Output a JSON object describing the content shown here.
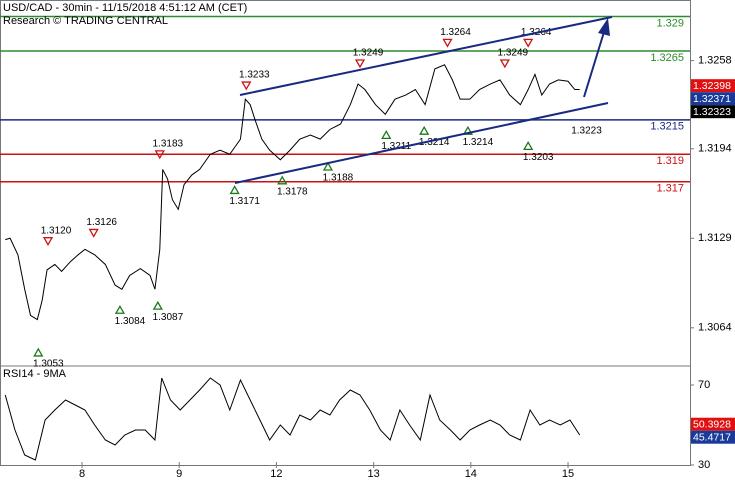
{
  "chart_data": [
    {
      "type": "line",
      "title": "USD/CAD - 30min - 11/15/2018 4:51:12 AM (CET)",
      "subtitle": "Research © TRADING CENTRAL",
      "color": "#000000",
      "xlim": [
        -0.844,
        6.255
      ],
      "xticks": [
        {
          "value": 0,
          "label": "8"
        },
        {
          "value": 1,
          "label": "9"
        },
        {
          "value": 2,
          "label": "12"
        },
        {
          "value": 3,
          "label": "13"
        },
        {
          "value": 4,
          "label": "14"
        },
        {
          "value": 5,
          "label": "15"
        }
      ],
      "ylim": [
        1.3037,
        1.3302
      ],
      "yticks": [
        1.3258,
        1.3194,
        1.3129,
        1.3064
      ],
      "x": [
        -0.79,
        -0.74,
        -0.66,
        -0.59,
        -0.53,
        -0.46,
        -0.41,
        -0.36,
        -0.28,
        -0.21,
        -0.12,
        -0.04,
        0.03,
        0.13,
        0.24,
        0.34,
        0.41,
        0.49,
        0.6,
        0.7,
        0.75,
        0.8,
        0.83,
        0.88,
        0.93,
        0.99,
        1.05,
        1.13,
        1.21,
        1.32,
        1.42,
        1.52,
        1.63,
        1.68,
        1.73,
        1.78,
        1.85,
        1.93,
        2.04,
        2.14,
        2.24,
        2.35,
        2.45,
        2.55,
        2.66,
        2.76,
        2.84,
        2.91,
        3.02,
        3.12,
        3.22,
        3.33,
        3.43,
        3.53,
        3.63,
        3.73,
        3.81,
        3.89,
        3.99,
        4.09,
        4.2,
        4.3,
        4.4,
        4.51,
        4.59,
        4.66,
        4.73,
        4.81,
        4.9,
        5.0,
        5.07,
        5.12
      ],
      "values": [
        1.3128,
        1.3129,
        1.3117,
        1.3092,
        1.3073,
        1.307,
        1.3084,
        1.3106,
        1.311,
        1.3105,
        1.3112,
        1.3117,
        1.3121,
        1.3117,
        1.311,
        1.3095,
        1.3092,
        1.3102,
        1.3107,
        1.3102,
        1.3092,
        1.3121,
        1.3179,
        1.3172,
        1.3157,
        1.315,
        1.3168,
        1.3175,
        1.3179,
        1.319,
        1.3193,
        1.319,
        1.3201,
        1.323,
        1.3226,
        1.3215,
        1.3201,
        1.3193,
        1.3186,
        1.3193,
        1.3201,
        1.3204,
        1.3201,
        1.3208,
        1.3212,
        1.3226,
        1.3241,
        1.3237,
        1.3226,
        1.3219,
        1.323,
        1.3233,
        1.3237,
        1.3226,
        1.3252,
        1.3255,
        1.3244,
        1.323,
        1.323,
        1.3237,
        1.3241,
        1.3244,
        1.3233,
        1.3226,
        1.3237,
        1.3248,
        1.3233,
        1.3241,
        1.3244,
        1.3243,
        1.3237,
        1.3237
      ],
      "levels": [
        {
          "value": 1.329,
          "color": "#2e8b2e"
        },
        {
          "value": 1.3265,
          "color": "#2e8b2e"
        },
        {
          "value": 1.3215,
          "color": "#1a2a80"
        },
        {
          "value": 1.319,
          "color": "#cc1111"
        },
        {
          "value": 1.317,
          "color": "#cc1111"
        }
      ],
      "price_tags": [
        {
          "value": 1.32398,
          "color": "#e01010"
        },
        {
          "value": 1.32371,
          "color": "#1a3a9a"
        },
        {
          "value": 1.32323,
          "color": "#000000"
        }
      ],
      "annotations": [
        {
          "x": -0.35,
          "value": 1.312,
          "label": "1.3120",
          "kind": "high"
        },
        {
          "x": 0.12,
          "value": 1.3126,
          "label": "1.3126",
          "kind": "high"
        },
        {
          "x": 0.8,
          "value": 1.3183,
          "label": "1.3183",
          "kind": "high"
        },
        {
          "x": 1.69,
          "value": 1.3233,
          "label": "1.3233",
          "kind": "high"
        },
        {
          "x": 2.86,
          "value": 1.3249,
          "label": "1.3249",
          "kind": "high"
        },
        {
          "x": 3.76,
          "value": 1.3264,
          "label": "1.3264",
          "kind": "high"
        },
        {
          "x": 4.35,
          "value": 1.3249,
          "label": "1.3249",
          "kind": "high"
        },
        {
          "x": 4.59,
          "value": 1.3264,
          "label": "1.3264",
          "kind": "high"
        },
        {
          "x": -0.45,
          "value": 1.3053,
          "label": "1.3053",
          "kind": "low"
        },
        {
          "x": 0.39,
          "value": 1.3084,
          "label": "1.3084",
          "kind": "low"
        },
        {
          "x": 0.78,
          "value": 1.3087,
          "label": "1.3087",
          "kind": "low"
        },
        {
          "x": 1.57,
          "value": 1.3171,
          "label": "1.3171",
          "kind": "low"
        },
        {
          "x": 2.06,
          "value": 1.3178,
          "label": "1.3178",
          "kind": "low"
        },
        {
          "x": 2.53,
          "value": 1.3188,
          "label": "1.3188",
          "kind": "low"
        },
        {
          "x": 3.13,
          "value": 1.3211,
          "label": "1.3211",
          "kind": "low"
        },
        {
          "x": 3.52,
          "value": 1.3214,
          "label": "1.3214",
          "kind": "low"
        },
        {
          "x": 3.97,
          "value": 1.3214,
          "label": "1.3214",
          "kind": "low"
        },
        {
          "x": 4.59,
          "value": 1.3203,
          "label": "1.3203",
          "kind": "low"
        },
        {
          "x": 5.19,
          "value": 1.3223,
          "label": "1.3223",
          "kind": "level"
        }
      ]
    },
    {
      "type": "line",
      "title": "RSI14 - 9MA",
      "color": "#000000",
      "ylim": [
        30,
        79
      ],
      "yticks": [
        70,
        30
      ],
      "x": [
        -0.79,
        -0.69,
        -0.59,
        -0.48,
        -0.38,
        -0.28,
        -0.17,
        -0.07,
        0.03,
        0.13,
        0.24,
        0.34,
        0.44,
        0.55,
        0.65,
        0.75,
        0.82,
        0.91,
        1.01,
        1.11,
        1.21,
        1.32,
        1.42,
        1.52,
        1.63,
        1.73,
        1.83,
        1.93,
        2.04,
        2.14,
        2.24,
        2.35,
        2.45,
        2.55,
        2.65,
        2.76,
        2.86,
        2.96,
        3.07,
        3.17,
        3.27,
        3.37,
        3.48,
        3.58,
        3.68,
        3.79,
        3.89,
        3.99,
        4.09,
        4.2,
        4.3,
        4.4,
        4.51,
        4.61,
        4.71,
        4.81,
        4.92,
        5.02,
        5.12
      ],
      "values": [
        65,
        47.5,
        35,
        32.5,
        52.5,
        57.5,
        62.5,
        60,
        57.5,
        50,
        42.5,
        40,
        45,
        47.5,
        47.5,
        42.5,
        73.5,
        62.5,
        57.5,
        62.5,
        67.5,
        73.5,
        70,
        57.5,
        72.5,
        62.5,
        52.5,
        42.5,
        50,
        45,
        55,
        52.5,
        57.5,
        55,
        62.5,
        67.5,
        65,
        57.5,
        47.5,
        42.5,
        57.5,
        50,
        42.5,
        65,
        52.5,
        47.5,
        42.5,
        47.5,
        50,
        52.5,
        50,
        45,
        42.5,
        57.5,
        50,
        52.5,
        50,
        52.5,
        45
      ],
      "price_tags": [
        {
          "value": 50.3928,
          "color": "#e01010"
        },
        {
          "value": 45.4717,
          "color": "#1a3a9a"
        }
      ]
    }
  ]
}
